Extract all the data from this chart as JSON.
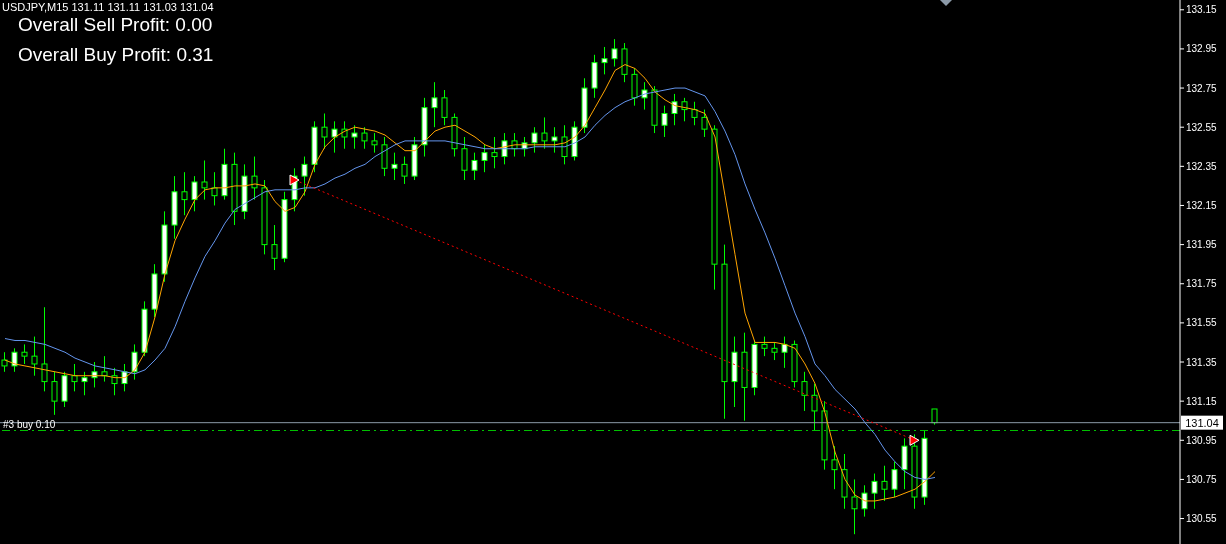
{
  "chart_data": {
    "type": "candlestick",
    "title": "USDJPY,M15  131.11 131.11 131.03 131.04",
    "annotations": [
      "Overall Sell Profit: 0.00",
      "Overall Buy Profit: 0.31"
    ],
    "color": "#00ff00",
    "tick_labels": "y",
    "ylim": [
      130.42,
      133.2
    ],
    "yticks": [
      133.15,
      132.95,
      132.75,
      132.55,
      132.35,
      132.15,
      131.95,
      131.75,
      131.55,
      131.35,
      131.15,
      130.95,
      130.75,
      130.55
    ],
    "categories": [
      null,
      null,
      null,
      null,
      null,
      null,
      null,
      null,
      null,
      null,
      null,
      null,
      null,
      null,
      null,
      null,
      null,
      null,
      null,
      null,
      null,
      null,
      null,
      null,
      null,
      null,
      null,
      null,
      null,
      null,
      null,
      null,
      null,
      null,
      null,
      null,
      null,
      null,
      null,
      null,
      null,
      null,
      null,
      null,
      null,
      null,
      null,
      null,
      null,
      null,
      null,
      null,
      null,
      null,
      null,
      null,
      null,
      null,
      null,
      null,
      null,
      null,
      null,
      null,
      null,
      null,
      null,
      null,
      null,
      null,
      null,
      null,
      null,
      null,
      null,
      null,
      null,
      null,
      null,
      null,
      null,
      null,
      null,
      null,
      null,
      null,
      null,
      null,
      null,
      null,
      null,
      null,
      null,
      null
    ],
    "ohlc": [
      [
        131.36,
        131.4,
        131.3,
        131.33
      ],
      [
        131.33,
        131.42,
        131.3,
        131.4
      ],
      [
        131.4,
        131.44,
        131.34,
        131.38
      ],
      [
        131.38,
        131.48,
        131.28,
        131.34
      ],
      [
        131.34,
        131.63,
        131.2,
        131.25
      ],
      [
        131.25,
        131.3,
        131.08,
        131.15
      ],
      [
        131.15,
        131.3,
        131.12,
        131.28
      ],
      [
        131.28,
        131.34,
        131.2,
        131.25
      ],
      [
        131.25,
        131.3,
        131.18,
        131.27
      ],
      [
        131.27,
        131.35,
        131.22,
        131.3
      ],
      [
        131.3,
        131.38,
        131.25,
        131.28
      ],
      [
        131.28,
        131.32,
        131.18,
        131.24
      ],
      [
        131.24,
        131.34,
        131.2,
        131.3
      ],
      [
        131.3,
        131.44,
        131.26,
        131.4
      ],
      [
        131.4,
        131.66,
        131.38,
        131.62
      ],
      [
        131.62,
        131.85,
        131.58,
        131.8
      ],
      [
        131.8,
        132.12,
        131.76,
        132.05
      ],
      [
        132.05,
        132.3,
        131.98,
        132.22
      ],
      [
        132.22,
        132.32,
        132.1,
        132.18
      ],
      [
        132.18,
        132.3,
        132.12,
        132.27
      ],
      [
        132.27,
        132.38,
        132.18,
        132.24
      ],
      [
        132.24,
        132.32,
        132.15,
        132.2
      ],
      [
        132.2,
        132.44,
        132.18,
        132.36
      ],
      [
        132.36,
        132.42,
        132.05,
        132.12
      ],
      [
        132.12,
        132.36,
        132.08,
        132.3
      ],
      [
        132.3,
        132.4,
        132.18,
        132.24
      ],
      [
        132.24,
        132.28,
        131.9,
        131.95
      ],
      [
        131.95,
        132.05,
        131.82,
        131.88
      ],
      [
        131.88,
        132.22,
        131.86,
        132.18
      ],
      [
        132.18,
        132.34,
        132.12,
        132.3
      ],
      [
        132.3,
        132.4,
        132.2,
        132.36
      ],
      [
        132.36,
        132.58,
        132.32,
        132.55
      ],
      [
        132.55,
        132.62,
        132.44,
        132.5
      ],
      [
        132.5,
        132.58,
        132.42,
        132.54
      ],
      [
        132.54,
        132.58,
        132.44,
        132.5
      ],
      [
        132.5,
        132.56,
        132.44,
        132.52
      ],
      [
        132.52,
        132.55,
        132.44,
        132.48
      ],
      [
        132.48,
        132.52,
        132.42,
        132.46
      ],
      [
        132.46,
        132.5,
        132.3,
        132.34
      ],
      [
        132.34,
        132.42,
        132.28,
        132.36
      ],
      [
        132.36,
        132.4,
        132.26,
        132.3
      ],
      [
        132.3,
        132.5,
        132.28,
        132.46
      ],
      [
        132.46,
        132.7,
        132.4,
        132.65
      ],
      [
        132.65,
        132.78,
        132.55,
        132.7
      ],
      [
        132.7,
        132.74,
        132.56,
        132.6
      ],
      [
        132.6,
        132.62,
        132.4,
        132.44
      ],
      [
        132.44,
        132.5,
        132.28,
        132.33
      ],
      [
        132.33,
        132.42,
        132.28,
        132.38
      ],
      [
        132.38,
        132.46,
        132.32,
        132.42
      ],
      [
        132.42,
        132.5,
        132.34,
        132.4
      ],
      [
        132.4,
        132.52,
        132.36,
        132.48
      ],
      [
        132.48,
        132.52,
        132.4,
        132.44
      ],
      [
        132.44,
        132.5,
        132.4,
        132.47
      ],
      [
        132.47,
        132.55,
        132.42,
        132.52
      ],
      [
        132.52,
        132.6,
        132.44,
        132.48
      ],
      [
        132.48,
        132.55,
        132.42,
        132.5
      ],
      [
        132.5,
        132.56,
        132.36,
        132.4
      ],
      [
        132.4,
        132.58,
        132.38,
        132.55
      ],
      [
        132.55,
        132.8,
        132.52,
        132.75
      ],
      [
        132.75,
        132.92,
        132.7,
        132.88
      ],
      [
        132.88,
        132.96,
        132.82,
        132.9
      ],
      [
        132.9,
        133.0,
        132.86,
        132.95
      ],
      [
        132.95,
        132.98,
        132.78,
        132.82
      ],
      [
        132.82,
        132.85,
        132.66,
        132.7
      ],
      [
        132.7,
        132.78,
        132.64,
        132.74
      ],
      [
        132.74,
        132.76,
        132.52,
        132.56
      ],
      [
        132.56,
        132.66,
        132.5,
        132.62
      ],
      [
        132.62,
        132.72,
        132.56,
        132.68
      ],
      [
        132.68,
        132.7,
        132.58,
        132.64
      ],
      [
        132.64,
        132.68,
        132.56,
        132.6
      ],
      [
        132.6,
        132.64,
        132.5,
        132.54
      ],
      [
        132.54,
        132.56,
        131.72,
        131.85
      ],
      [
        131.85,
        131.95,
        131.06,
        131.25
      ],
      [
        131.25,
        131.48,
        131.12,
        131.4
      ],
      [
        131.4,
        131.5,
        131.05,
        131.22
      ],
      [
        131.22,
        131.46,
        131.18,
        131.44
      ],
      [
        131.44,
        131.48,
        131.38,
        131.42
      ],
      [
        131.42,
        131.45,
        131.36,
        131.4
      ],
      [
        131.4,
        131.48,
        131.32,
        131.44
      ],
      [
        131.44,
        131.46,
        131.22,
        131.25
      ],
      [
        131.25,
        131.3,
        131.1,
        131.18
      ],
      [
        131.18,
        131.24,
        131.0,
        131.1
      ],
      [
        131.1,
        131.15,
        130.8,
        130.85
      ],
      [
        130.85,
        130.92,
        130.7,
        130.8
      ],
      [
        130.8,
        130.88,
        130.6,
        130.66
      ],
      [
        130.66,
        130.75,
        130.47,
        130.6
      ],
      [
        130.6,
        130.72,
        130.56,
        130.68
      ],
      [
        130.68,
        130.78,
        130.6,
        130.74
      ],
      [
        130.74,
        130.82,
        130.64,
        130.7
      ],
      [
        130.7,
        130.84,
        130.66,
        130.8
      ],
      [
        130.8,
        130.96,
        130.7,
        130.92
      ],
      [
        130.92,
        130.98,
        130.6,
        130.66
      ],
      [
        130.66,
        131.0,
        130.62,
        130.96
      ],
      [
        131.11,
        131.11,
        131.03,
        131.04
      ]
    ],
    "series": [
      {
        "type": "line",
        "color": "#ffa500",
        "values": [
          131.36,
          131.34,
          131.33,
          131.32,
          131.31,
          131.3,
          131.29,
          131.28,
          131.28,
          131.28,
          131.28,
          131.27,
          131.27,
          131.31,
          131.4,
          131.58,
          131.8,
          131.97,
          132.08,
          132.18,
          132.23,
          132.24,
          132.24,
          132.25,
          132.25,
          132.26,
          132.25,
          132.17,
          132.12,
          132.14,
          132.22,
          132.36,
          132.45,
          132.5,
          132.53,
          132.55,
          132.54,
          132.53,
          132.51,
          132.47,
          132.43,
          132.43,
          132.48,
          132.53,
          132.55,
          132.56,
          132.53,
          132.5,
          132.46,
          132.44,
          132.45,
          132.46,
          132.46,
          132.46,
          132.46,
          132.46,
          132.47,
          132.5,
          132.56,
          132.65,
          132.74,
          132.84,
          132.87,
          132.85,
          132.8,
          132.73,
          132.69,
          132.66,
          132.65,
          132.64,
          132.62,
          132.5,
          132.2,
          131.9,
          131.6,
          131.45,
          131.45,
          131.45,
          131.44,
          131.42,
          131.34,
          131.24,
          131.09,
          130.89,
          130.75,
          130.67,
          130.64,
          130.64,
          130.65,
          130.66,
          130.68,
          130.7,
          130.74,
          130.79
        ]
      },
      {
        "type": "line",
        "color": "#6495ed",
        "values": [
          131.47,
          131.46,
          131.46,
          131.45,
          131.44,
          131.42,
          131.4,
          131.37,
          131.35,
          131.33,
          131.32,
          131.31,
          131.3,
          131.29,
          131.31,
          131.36,
          131.42,
          131.53,
          131.66,
          131.78,
          131.89,
          131.97,
          132.06,
          132.13,
          132.16,
          132.19,
          132.22,
          132.23,
          132.23,
          132.23,
          132.24,
          132.24,
          132.26,
          132.29,
          132.31,
          132.34,
          132.36,
          132.4,
          132.43,
          132.46,
          132.48,
          132.48,
          132.48,
          132.48,
          132.48,
          132.47,
          132.46,
          132.45,
          132.44,
          132.44,
          132.44,
          132.44,
          132.44,
          132.45,
          132.45,
          132.45,
          132.45,
          132.47,
          132.5,
          132.56,
          132.61,
          132.65,
          132.68,
          132.7,
          132.72,
          132.73,
          132.74,
          132.75,
          132.75,
          132.73,
          132.71,
          132.63,
          132.53,
          132.41,
          132.26,
          132.13,
          132.01,
          131.88,
          131.74,
          131.6,
          131.48,
          131.34,
          131.28,
          131.21,
          131.16,
          131.11,
          131.04,
          130.98,
          130.9,
          130.84,
          130.79,
          130.76,
          130.75,
          130.76
        ]
      },
      {
        "type": "line",
        "color": "#ff0000",
        "line_style": "dotted",
        "marker": "triangle",
        "values": [
          null,
          null,
          null,
          null,
          null,
          null,
          null,
          null,
          null,
          null,
          null,
          null,
          null,
          null,
          null,
          null,
          null,
          null,
          null,
          null,
          null,
          null,
          null,
          null,
          null,
          null,
          null,
          null,
          null,
          132.28,
          null,
          null,
          null,
          null,
          null,
          null,
          null,
          null,
          null,
          null,
          null,
          null,
          null,
          null,
          null,
          null,
          null,
          null,
          null,
          null,
          null,
          null,
          null,
          null,
          null,
          null,
          null,
          null,
          null,
          null,
          null,
          null,
          null,
          null,
          null,
          null,
          null,
          null,
          null,
          null,
          null,
          null,
          null,
          null,
          null,
          null,
          null,
          null,
          null,
          null,
          null,
          null,
          null,
          null,
          null,
          null,
          null,
          null,
          null,
          null,
          null,
          130.95,
          null,
          null
        ]
      }
    ],
    "ref_lines": [
      {
        "axis": "y",
        "value": 131.04,
        "label": "131.04",
        "color": "#8c9aa8",
        "line_style": "solid"
      },
      {
        "axis": "y",
        "value": 131.0,
        "label": "#3 buy 0.10",
        "color": "#00c000",
        "line_style": "dashed"
      }
    ]
  }
}
